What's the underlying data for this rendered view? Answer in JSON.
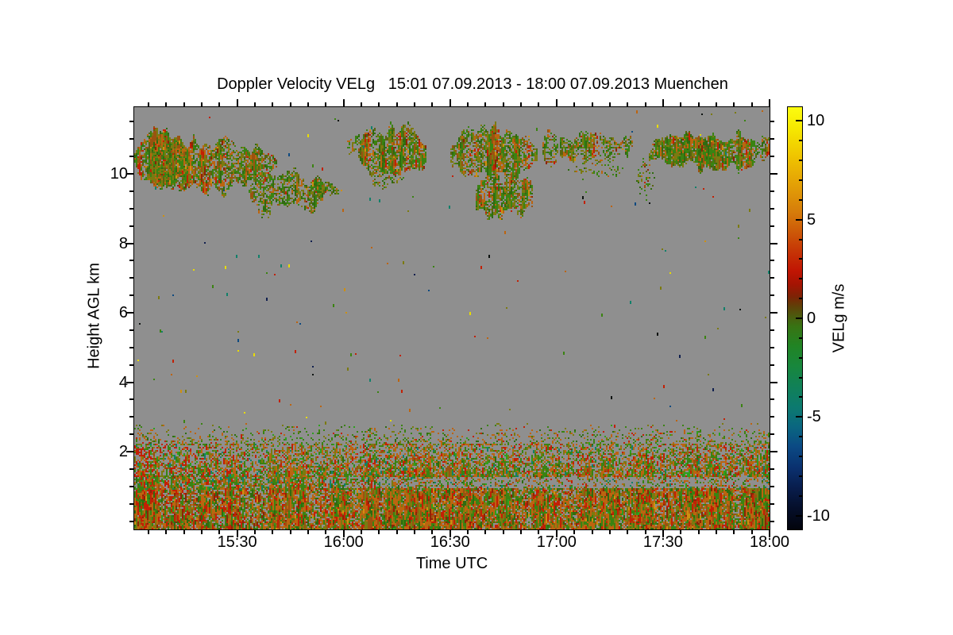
{
  "title": "Doppler Velocity VELg   15:01 07.09.2013 - 18:00 07.09.2013 Muenchen",
  "station": "Muenchen",
  "time_range": {
    "start": "15:01 07.09.2013",
    "end": "18:00 07.09.2013"
  },
  "axes": {
    "x": {
      "label": "Time UTC",
      "duration_min": 179,
      "minor_step_min": 5,
      "major_ticks": [
        {
          "label": "15:30",
          "t": 29
        },
        {
          "label": "16:00",
          "t": 59
        },
        {
          "label": "16:30",
          "t": 89
        },
        {
          "label": "17:00",
          "t": 119
        },
        {
          "label": "17:30",
          "t": 149
        },
        {
          "label": "18:00",
          "t": 179
        }
      ]
    },
    "y": {
      "label": "Height AGL km",
      "min_km": -0.237,
      "max_km": 11.92,
      "minor_step_km": 0.5,
      "major_ticks": [
        {
          "label": "2",
          "km": 2
        },
        {
          "label": "4",
          "km": 4
        },
        {
          "label": "6",
          "km": 6
        },
        {
          "label": "8",
          "km": 8
        },
        {
          "label": "10",
          "km": 10
        }
      ]
    }
  },
  "colorbar": {
    "label": "VELg m/s",
    "max": 10.7,
    "min": -10.7,
    "minor_step": 1,
    "major_ticks": [
      {
        "label": "10",
        "v": 10
      },
      {
        "label": "5",
        "v": 5
      },
      {
        "label": "0",
        "v": 0
      },
      {
        "label": "-5",
        "v": -5
      },
      {
        "label": "-10",
        "v": -10
      }
    ],
    "stops": [
      [
        10.7,
        "#fcfc10"
      ],
      [
        9.6,
        "#f6e800"
      ],
      [
        8.2,
        "#efc400"
      ],
      [
        6.8,
        "#e4a106"
      ],
      [
        5.4,
        "#d67d0a"
      ],
      [
        4.4,
        "#cd5a08"
      ],
      [
        3.4,
        "#c63506"
      ],
      [
        2.4,
        "#c11503"
      ],
      [
        1.7,
        "#a31403"
      ],
      [
        1.1,
        "#7d2305"
      ],
      [
        0.6,
        "#5f4108"
      ],
      [
        0.15,
        "#4d590e"
      ],
      [
        -0.4,
        "#387313"
      ],
      [
        -1.4,
        "#218424"
      ],
      [
        -2.4,
        "#18873c"
      ],
      [
        -3.4,
        "#118156"
      ],
      [
        -4.5,
        "#0c7a6f"
      ],
      [
        -5.5,
        "#0a6680"
      ],
      [
        -6.5,
        "#0b4a84"
      ],
      [
        -7.6,
        "#0a306e"
      ],
      [
        -8.6,
        "#081d4c"
      ],
      [
        -9.6,
        "#050f2b"
      ],
      [
        -10.7,
        "#02040c"
      ]
    ]
  },
  "chart_data": {
    "type": "heatmap",
    "title": "Doppler Velocity VELg 15:01 07.09.2013 - 18:00 07.09.2013 Muenchen",
    "xlabel": "Time UTC",
    "ylabel": "Height AGL km",
    "value_label": "VELg m/s",
    "value_range": [
      -10.7,
      10.7
    ],
    "background": "#8f8f8f",
    "palette": {
      "red": "#c22004",
      "darkred": "#8c2406",
      "orange": "#bc6410",
      "brown": "#9a5210",
      "amber": "#cf9010",
      "yellow": "#e8dc00",
      "olive": "#7b7a10",
      "dkolive": "#5a6410",
      "green": "#3a8312",
      "dkgreen": "#2f6b10",
      "btgreen": "#2da01e",
      "teal": "#12806a",
      "blue": "#0e4a80",
      "navy": "#101f4e",
      "black": "#0c1210"
    },
    "cloud_layer": {
      "description": "Cirrus cloud Doppler velocity patches 9-11.3 km AGL",
      "cool_palette": {
        "green": 32,
        "dkgreen": 16,
        "olive": 26,
        "dkolive": 12,
        "orange": 9,
        "brown": 5
      },
      "warm_palette": {
        "orange": 27,
        "brown": 23,
        "red": 16,
        "darkred": 8,
        "olive": 14,
        "amber": 5,
        "green": 7
      },
      "blobs": [
        {
          "t0": 0,
          "t1": 15,
          "h0": 9.7,
          "h1": 11.2,
          "density": 0.95,
          "warm": 0.4,
          "amp": 0.5
        },
        {
          "t0": 4,
          "t1": 40,
          "h0": 9.55,
          "h1": 10.95,
          "density": 0.92,
          "warm": 0.28,
          "amp": 0.45
        },
        {
          "t0": 32,
          "t1": 53,
          "h0": 8.9,
          "h1": 9.95,
          "density": 0.72,
          "warm": 0.22,
          "amp": 0.5
        },
        {
          "t0": 49,
          "t1": 58,
          "h0": 9.3,
          "h1": 9.8,
          "density": 0.65,
          "warm": 0.15,
          "amp": 0.3
        },
        {
          "t0": 60,
          "t1": 64,
          "h0": 10.6,
          "h1": 11.1,
          "density": 0.6,
          "warm": 0.2,
          "amp": 0.25
        },
        {
          "t0": 63,
          "t1": 82,
          "h0": 10.0,
          "h1": 11.3,
          "density": 0.95,
          "warm": 0.5,
          "amp": 0.5
        },
        {
          "t0": 67,
          "t1": 76,
          "h0": 9.6,
          "h1": 10.05,
          "density": 0.4,
          "warm": 0.2,
          "amp": 0.3
        },
        {
          "t0": 89,
          "t1": 113,
          "h0": 9.85,
          "h1": 11.25,
          "density": 0.93,
          "warm": 0.33,
          "amp": 0.5
        },
        {
          "t0": 96,
          "t1": 112,
          "h0": 8.8,
          "h1": 9.9,
          "density": 0.78,
          "warm": 0.25,
          "amp": 0.5
        },
        {
          "t0": 115,
          "t1": 119,
          "h0": 10.2,
          "h1": 11.25,
          "density": 0.7,
          "warm": 0.25,
          "amp": 0.3
        },
        {
          "t0": 120,
          "t1": 140,
          "h0": 10.35,
          "h1": 11.1,
          "density": 0.68,
          "warm": 0.3,
          "amp": 0.35
        },
        {
          "t0": 122,
          "t1": 138,
          "h0": 9.9,
          "h1": 10.4,
          "density": 0.22,
          "warm": 0.2,
          "amp": 0.3
        },
        {
          "t0": 141,
          "t1": 147,
          "h0": 9.4,
          "h1": 10.3,
          "density": 0.3,
          "warm": 0.1,
          "amp": 0.35
        },
        {
          "t0": 145,
          "t1": 179,
          "h0": 10.15,
          "h1": 11.15,
          "density": 0.88,
          "warm": 0.2,
          "amp": 0.4
        }
      ]
    },
    "boundary_layer": {
      "description": "Speckled boundary-layer echoes below ~2.8 km with clear gap band near 1.1 km",
      "bands": [
        {
          "h0": -0.25,
          "h1": 0.95,
          "d0": 0.97,
          "d1": 0.88,
          "red_left_boost": 0.5,
          "palette": {
            "orange": 28,
            "brown": 13,
            "olive": 14,
            "green": 17,
            "dkgreen": 8,
            "red": 12,
            "darkred": 5,
            "amber": 2,
            "btgreen": 1
          }
        },
        {
          "h0": 0.95,
          "h1": 1.3,
          "gap": true,
          "d_left": 0.8,
          "d_right": 0.3,
          "palette": {
            "orange": 24,
            "olive": 14,
            "green": 28,
            "dkgreen": 6,
            "teal": 8,
            "red": 10,
            "brown": 6,
            "btgreen": 4
          }
        },
        {
          "h0": 1.3,
          "h1": 2.2,
          "d0": 0.8,
          "d1": 0.4,
          "red_left_boost": 0.6,
          "palette": {
            "orange": 28,
            "olive": 16,
            "green": 24,
            "btgreen": 5,
            "red": 13,
            "teal": 4,
            "brown": 6,
            "dkgreen": 4
          }
        },
        {
          "h0": 2.2,
          "h1": 2.8,
          "d0": 0.3,
          "d1": 0.02,
          "palette": {
            "green": 36,
            "olive": 20,
            "orange": 24,
            "red": 8,
            "dkgreen": 8,
            "btgreen": 4
          }
        }
      ]
    },
    "specks": {
      "description": "Isolated noise pixels scattered through clear air 2.8-11.9 km",
      "count": 155,
      "h0": 2.85,
      "h1": 11.85,
      "palette": {
        "green": 17,
        "olive": 13,
        "orange": 14,
        "red": 9,
        "yellow": 8,
        "amber": 5,
        "teal": 8,
        "blue": 6,
        "navy": 8,
        "black": 12
      }
    }
  }
}
